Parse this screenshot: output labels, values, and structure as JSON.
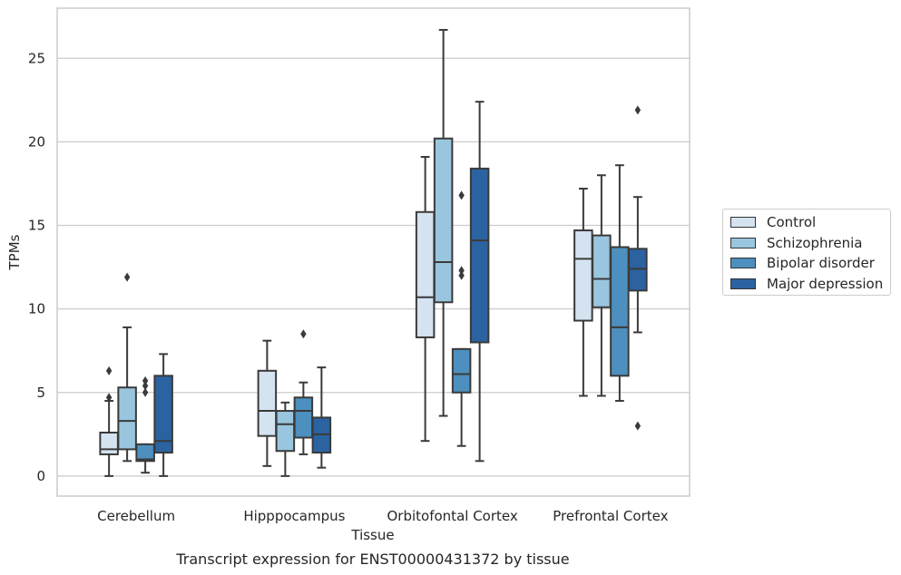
{
  "chart_data": {
    "type": "box",
    "title": "Transcript expression for ENST00000431372 by tissue",
    "xlabel": "Tissue",
    "ylabel": "TPMs",
    "ylim": [
      -1.2,
      28
    ],
    "yticks": [
      0,
      5,
      10,
      15,
      20,
      25
    ],
    "grid": "horizontal",
    "legend_position": "right",
    "categories": [
      "Cerebellum",
      "Hipppocampus",
      "Orbitofontal Cortex",
      "Prefrontal Cortex"
    ],
    "series": [
      {
        "name": "Control",
        "color": "#d5e3f1",
        "boxes": [
          {
            "whislo": 0.0,
            "q1": 1.3,
            "med": 1.6,
            "q3": 2.6,
            "whishi": 4.5,
            "fliers": [
              6.3,
              4.7
            ]
          },
          {
            "whislo": 0.6,
            "q1": 2.4,
            "med": 3.9,
            "q3": 6.3,
            "whishi": 8.1,
            "fliers": []
          },
          {
            "whislo": 2.1,
            "q1": 8.3,
            "med": 10.7,
            "q3": 15.8,
            "whishi": 19.1,
            "fliers": []
          },
          {
            "whislo": 4.8,
            "q1": 9.3,
            "med": 13.0,
            "q3": 14.7,
            "whishi": 17.2,
            "fliers": []
          }
        ]
      },
      {
        "name": "Schizophrenia",
        "color": "#9ac5de",
        "boxes": [
          {
            "whislo": 0.9,
            "q1": 1.6,
            "med": 3.3,
            "q3": 5.3,
            "whishi": 8.9,
            "fliers": [
              11.9
            ]
          },
          {
            "whislo": 0.0,
            "q1": 1.5,
            "med": 3.1,
            "q3": 3.9,
            "whishi": 4.4,
            "fliers": []
          },
          {
            "whislo": 3.6,
            "q1": 10.4,
            "med": 12.8,
            "q3": 20.2,
            "whishi": 26.7,
            "fliers": []
          },
          {
            "whislo": 4.8,
            "q1": 10.1,
            "med": 11.8,
            "q3": 14.4,
            "whishi": 18.0,
            "fliers": []
          }
        ]
      },
      {
        "name": "Bipolar disorder",
        "color": "#4d8fbe",
        "boxes": [
          {
            "whislo": 0.2,
            "q1": 0.9,
            "med": 1.0,
            "q3": 1.9,
            "whishi": 1.9,
            "fliers": [
              5.0,
              5.4,
              5.7
            ]
          },
          {
            "whislo": 1.3,
            "q1": 2.3,
            "med": 3.9,
            "q3": 4.7,
            "whishi": 5.6,
            "fliers": [
              8.5
            ]
          },
          {
            "whislo": 1.8,
            "q1": 5.0,
            "med": 6.1,
            "q3": 7.6,
            "whishi": 7.6,
            "fliers": [
              16.8,
              12.3,
              12.0
            ]
          },
          {
            "whislo": 4.5,
            "q1": 6.0,
            "med": 8.9,
            "q3": 13.7,
            "whishi": 18.6,
            "fliers": []
          }
        ]
      },
      {
        "name": "Major depression",
        "color": "#2b63a1",
        "boxes": [
          {
            "whislo": 0.0,
            "q1": 1.4,
            "med": 2.1,
            "q3": 6.0,
            "whishi": 7.3,
            "fliers": []
          },
          {
            "whislo": 0.5,
            "q1": 1.4,
            "med": 2.5,
            "q3": 3.5,
            "whishi": 6.5,
            "fliers": []
          },
          {
            "whislo": 0.9,
            "q1": 8.0,
            "med": 14.1,
            "q3": 18.4,
            "whishi": 22.4,
            "fliers": []
          },
          {
            "whislo": 8.6,
            "q1": 11.1,
            "med": 12.4,
            "q3": 13.6,
            "whishi": 16.7,
            "fliers": [
              21.9,
              3.0
            ]
          }
        ]
      }
    ]
  }
}
